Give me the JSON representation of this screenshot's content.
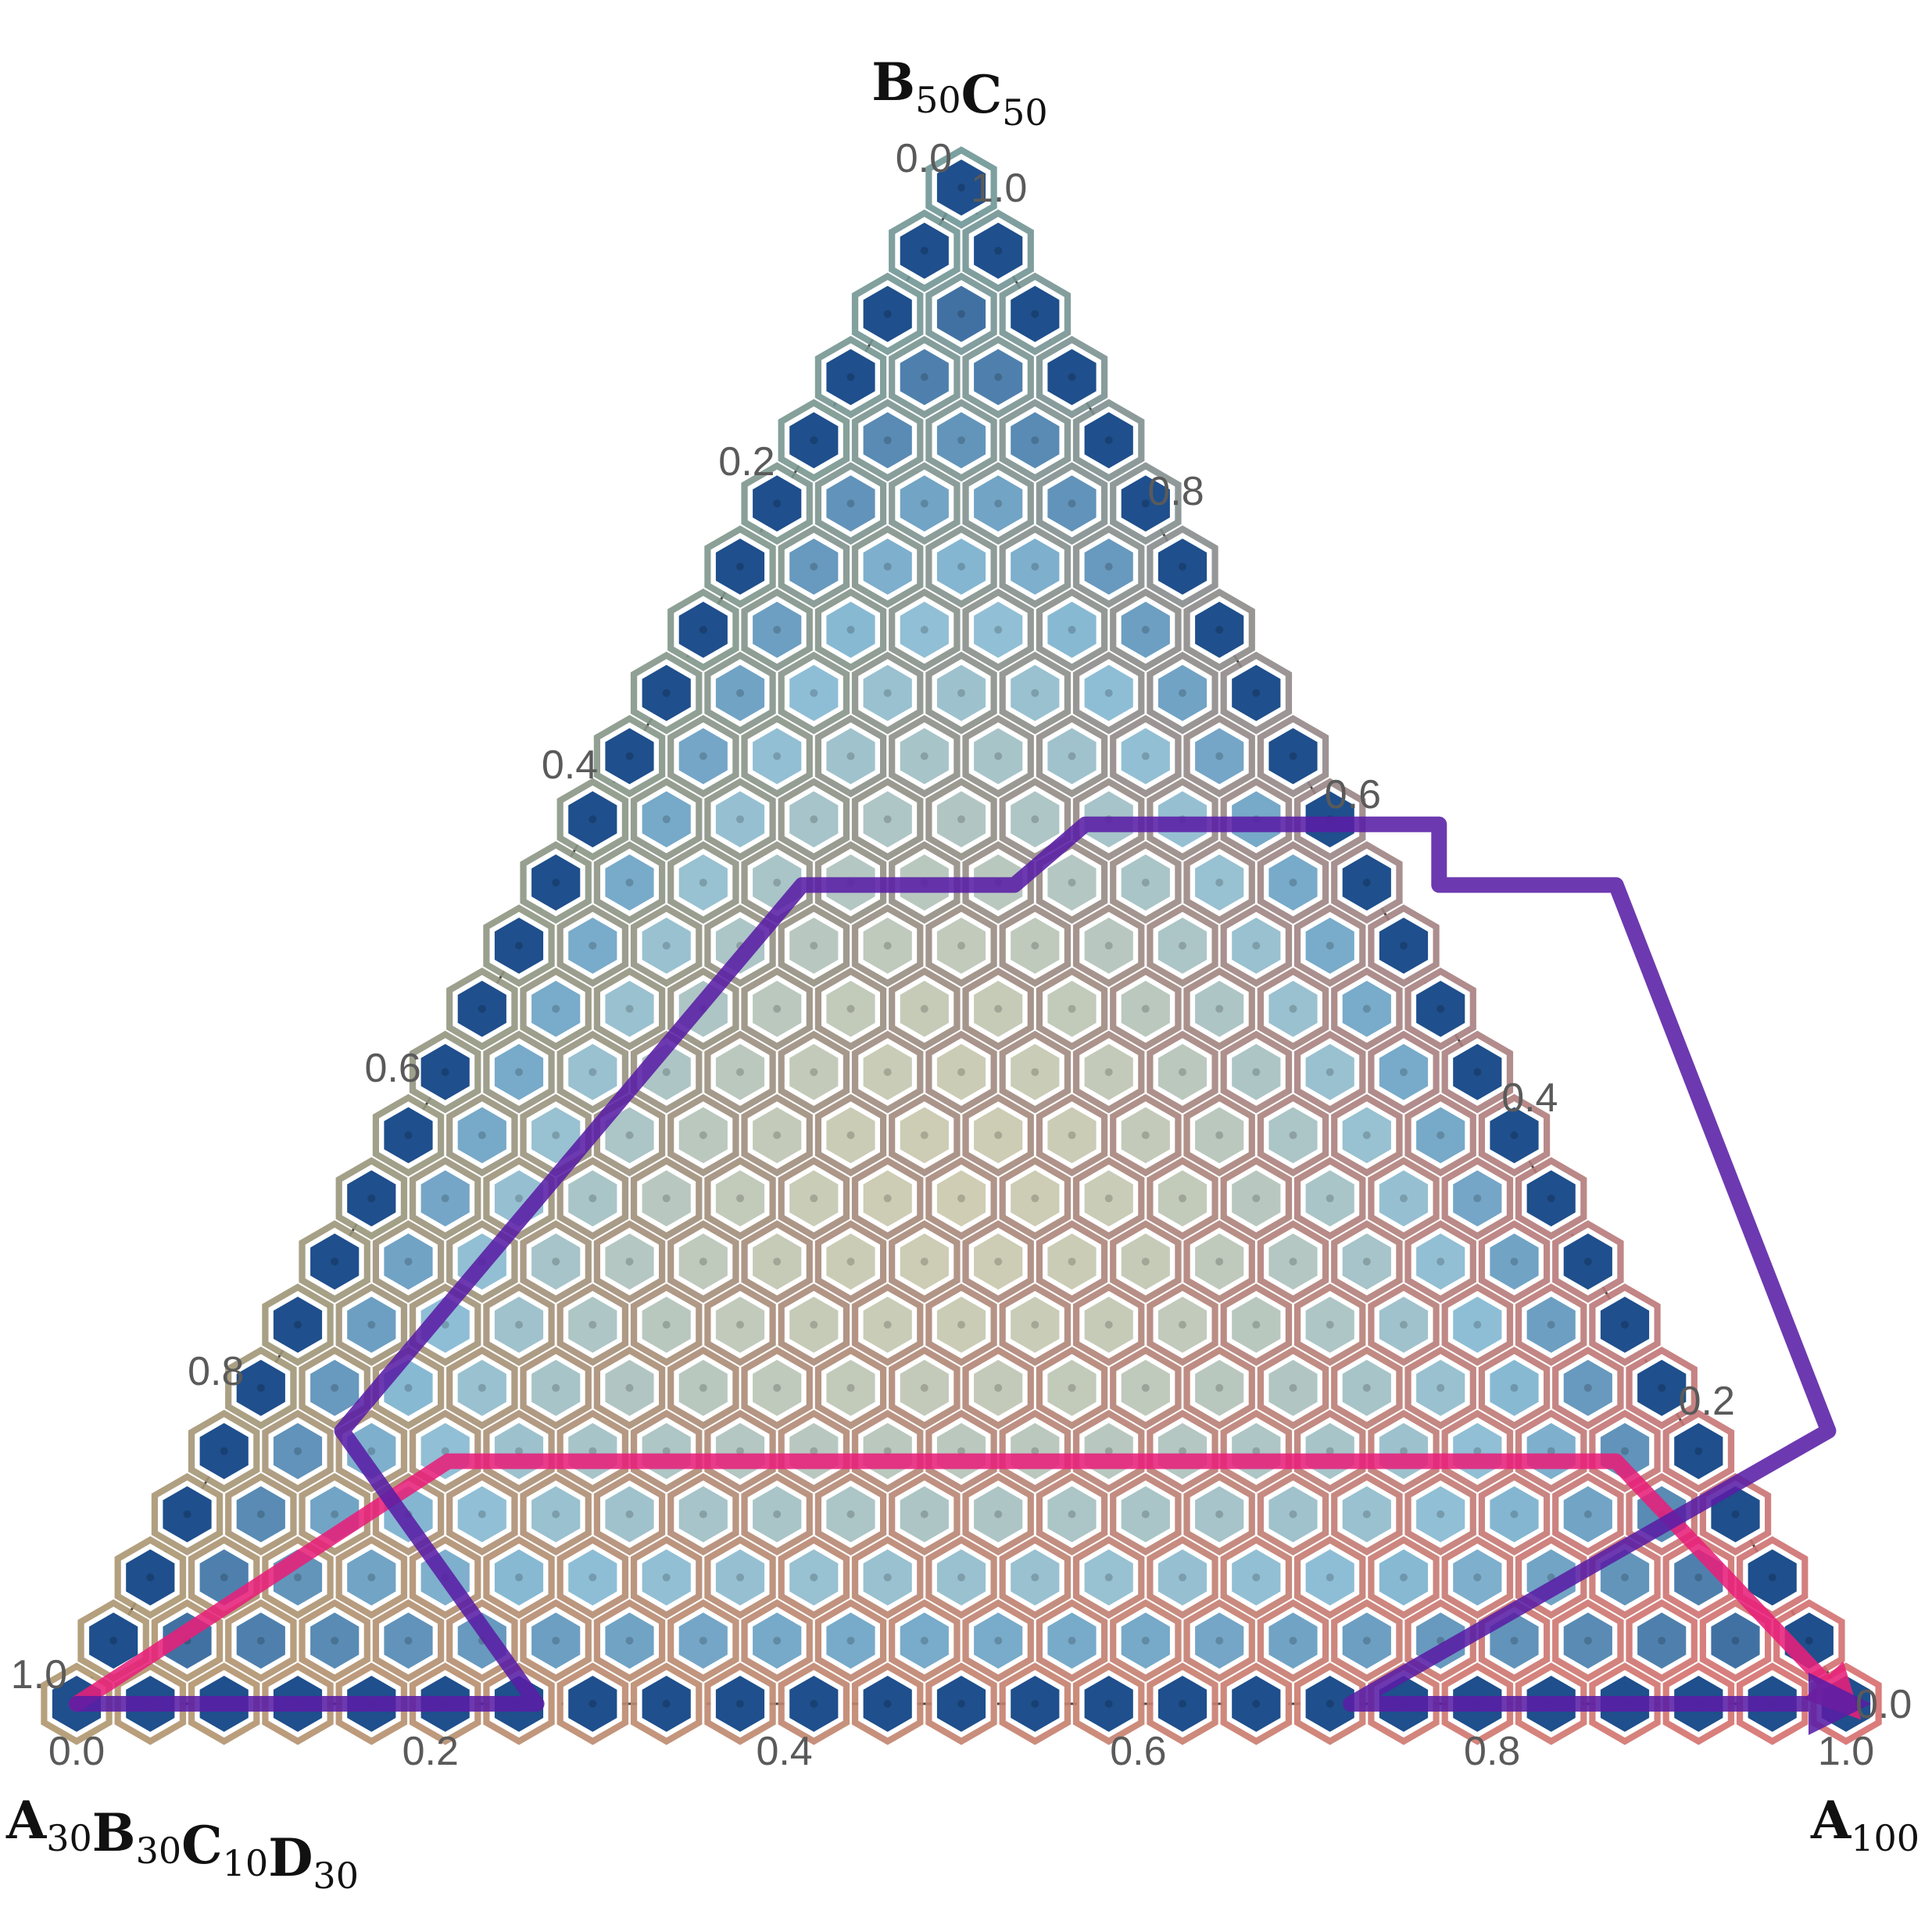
{
  "chart_data": {
    "type": "heatmap",
    "vertices": {
      "top": {
        "parts": [
          {
            "base": "B",
            "sub": "50"
          },
          {
            "base": "C",
            "sub": "50"
          }
        ]
      },
      "left": {
        "parts": [
          {
            "base": "A",
            "sub": "30"
          },
          {
            "base": "B",
            "sub": "30"
          },
          {
            "base": "C",
            "sub": "10"
          },
          {
            "base": "D",
            "sub": "30"
          }
        ]
      },
      "right": {
        "parts": [
          {
            "base": "A",
            "sub": "100"
          }
        ]
      }
    },
    "axes": {
      "bottom": {
        "ticks": [
          "0.0",
          "0.2",
          "0.4",
          "0.6",
          "0.8",
          "1.0"
        ]
      },
      "left": {
        "ticks": [
          "0.0",
          "0.2",
          "0.4",
          "0.6",
          "0.8",
          "1.0"
        ]
      },
      "right": {
        "ticks": [
          "1.0",
          "0.8",
          "0.6",
          "0.4",
          "0.2",
          "0.0"
        ]
      }
    },
    "grid_resolution": 24,
    "colors": {
      "low": "#1f4f8c",
      "mid": "#d9cfae",
      "high": "#cd6a55",
      "path_pink": "#e8207a",
      "path_purple": "#5a1ea6"
    },
    "paths": [
      {
        "color_key": "path_pink",
        "points": [
          [
            0,
            0
          ],
          [
            0.13,
            0.16
          ],
          [
            0.79,
            0.16
          ],
          [
            1.0,
            0
          ]
        ],
        "arrow": true
      },
      {
        "color_key": "path_purple",
        "points": [
          [
            0,
            0
          ],
          [
            0.26,
            0
          ],
          [
            0.06,
            0.18
          ],
          [
            0.14,
            0.54
          ],
          [
            0.26,
            0.54
          ],
          [
            0.28,
            0.58
          ],
          [
            0.48,
            0.58
          ],
          [
            0.5,
            0.54
          ],
          [
            0.6,
            0.54
          ],
          [
            0.9,
            0.18
          ],
          [
            0.72,
            0
          ],
          [
            1.0,
            0
          ]
        ],
        "arrow": true
      }
    ]
  }
}
